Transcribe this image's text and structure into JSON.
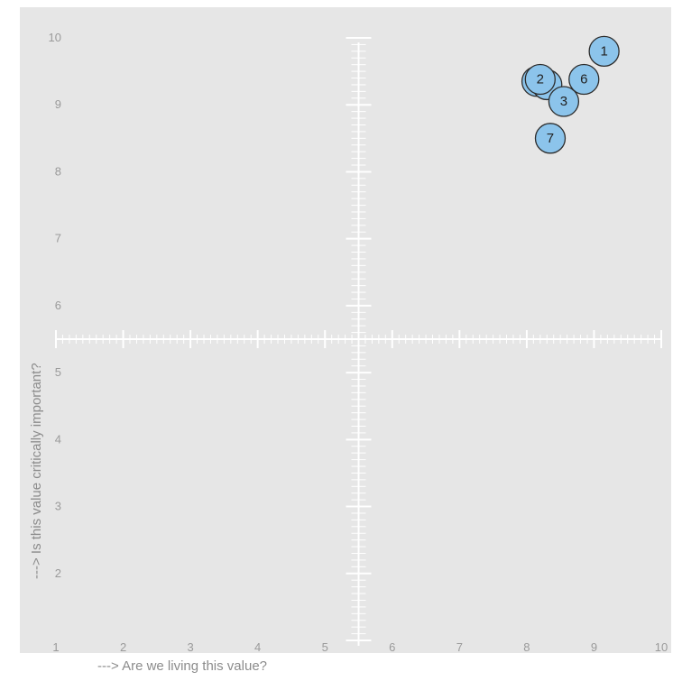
{
  "chart_data": {
    "type": "scatter",
    "xlabel": "---> Are we living this value?",
    "ylabel": "---> Is this value critically important?",
    "xlim": [
      1,
      10
    ],
    "ylim": [
      1,
      10
    ],
    "x_ticks": [
      "1",
      "2",
      "3",
      "4",
      "5",
      "6",
      "7",
      "8",
      "9",
      "10"
    ],
    "y_ticks": [
      "2",
      "3",
      "4",
      "5",
      "6",
      "7",
      "8",
      "9",
      "10"
    ],
    "crosshair": {
      "x": 5.5,
      "y": 5.5
    },
    "grid": false,
    "colors": {
      "panel": "#e6e6e6",
      "marker_fill": "#8cc4eb",
      "marker_stroke": "#2d2d2d",
      "crosshair": "#ffffff"
    },
    "points": [
      {
        "label": "1",
        "x": 9.15,
        "y": 9.8
      },
      {
        "label": "",
        "x": 8.15,
        "y": 9.35
      },
      {
        "label": "",
        "x": 8.3,
        "y": 9.3
      },
      {
        "label": "2",
        "x": 8.2,
        "y": 9.38
      },
      {
        "label": "6",
        "x": 8.85,
        "y": 9.38
      },
      {
        "label": "3",
        "x": 8.55,
        "y": 9.05
      },
      {
        "label": "7",
        "x": 8.35,
        "y": 8.5
      }
    ]
  }
}
